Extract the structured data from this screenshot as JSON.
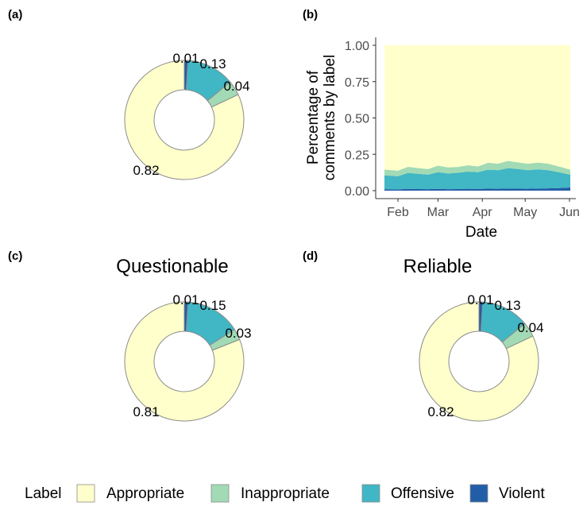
{
  "colors": {
    "appropriate": "#FFFFCC",
    "inappropriate": "#A1DAB4",
    "offensive": "#41B6C4",
    "violent": "#225EA8",
    "ring_stroke": "#8c8c8c",
    "axis": "#333333"
  },
  "panels": {
    "a": "(a)",
    "b": "(b)",
    "c": "(c)",
    "d": "(d)"
  },
  "legend": {
    "title": "Label",
    "items": [
      "Appropriate",
      "Inappropriate",
      "Offensive",
      "Violent"
    ]
  },
  "chart_data": [
    {
      "panel": "(a)",
      "type": "pie",
      "title": "",
      "labels": [
        "Violent",
        "Offensive",
        "Inappropriate",
        "Appropriate"
      ],
      "values": [
        0.01,
        0.13,
        0.04,
        0.82
      ],
      "value_labels": [
        "0.01",
        "0.13",
        "0.04",
        "0.82"
      ]
    },
    {
      "panel": "(b)",
      "type": "area",
      "title": "",
      "xlabel": "Date",
      "ylabel": "Percentage of comments by label",
      "ylabel_lines": [
        "Percentage of",
        "comments by label"
      ],
      "xticks": [
        "Feb",
        "Mar",
        "Apr",
        "May",
        "Jun"
      ],
      "yticks": [
        "0.00",
        "0.25",
        "0.50",
        "0.75",
        "1.00"
      ],
      "ylim": [
        0,
        1
      ],
      "x": [
        "2021-01-25",
        "2021-02-01",
        "2021-02-08",
        "2021-02-15",
        "2021-02-22",
        "2021-03-01",
        "2021-03-08",
        "2021-03-15",
        "2021-03-22",
        "2021-03-29",
        "2021-04-05",
        "2021-04-12",
        "2021-04-19",
        "2021-04-26",
        "2021-05-03",
        "2021-05-10",
        "2021-05-17",
        "2021-05-24",
        "2021-05-31"
      ],
      "series": [
        {
          "name": "Violent",
          "values": [
            0.01,
            0.009,
            0.012,
            0.011,
            0.01,
            0.012,
            0.01,
            0.011,
            0.013,
            0.012,
            0.014,
            0.013,
            0.015,
            0.014,
            0.013,
            0.015,
            0.016,
            0.018,
            0.022
          ]
        },
        {
          "name": "Offensive",
          "values": [
            0.095,
            0.09,
            0.11,
            0.105,
            0.1,
            0.115,
            0.108,
            0.112,
            0.118,
            0.115,
            0.13,
            0.128,
            0.14,
            0.135,
            0.128,
            0.132,
            0.125,
            0.11,
            0.088
          ]
        },
        {
          "name": "Inappropriate",
          "values": [
            0.04,
            0.038,
            0.042,
            0.04,
            0.038,
            0.045,
            0.042,
            0.04,
            0.044,
            0.04,
            0.048,
            0.045,
            0.05,
            0.046,
            0.044,
            0.046,
            0.045,
            0.04,
            0.035
          ]
        },
        {
          "name": "Appropriate",
          "values": [
            0.855,
            0.863,
            0.836,
            0.844,
            0.852,
            0.828,
            0.84,
            0.837,
            0.825,
            0.833,
            0.808,
            0.814,
            0.795,
            0.805,
            0.815,
            0.807,
            0.814,
            0.832,
            0.855
          ]
        }
      ]
    },
    {
      "panel": "(c)",
      "type": "pie",
      "title": "Questionable",
      "labels": [
        "Violent",
        "Offensive",
        "Inappropriate",
        "Appropriate"
      ],
      "values": [
        0.01,
        0.15,
        0.03,
        0.81
      ],
      "value_labels": [
        "0.01",
        "0.15",
        "0.03",
        "0.81"
      ]
    },
    {
      "panel": "(d)",
      "type": "pie",
      "title": "Reliable",
      "labels": [
        "Violent",
        "Offensive",
        "Inappropriate",
        "Appropriate"
      ],
      "values": [
        0.01,
        0.13,
        0.04,
        0.82
      ],
      "value_labels": [
        "0.01",
        "0.13",
        "0.04",
        "0.82"
      ]
    }
  ]
}
